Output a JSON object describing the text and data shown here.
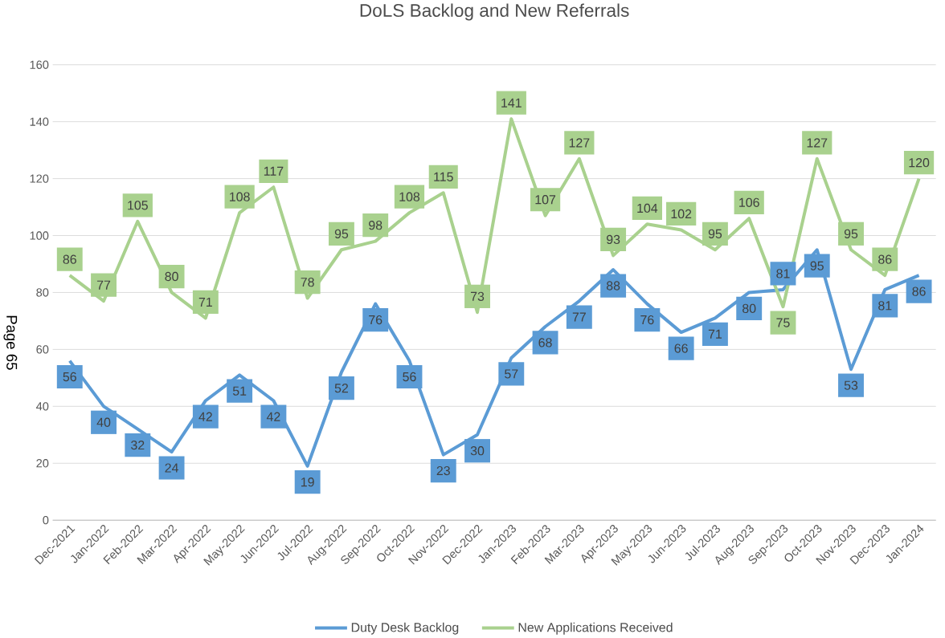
{
  "chart_data": {
    "type": "line",
    "title": "DoLS Backlog and New Referrals",
    "categories": [
      "Dec-2021",
      "Jan-2022",
      "Feb-2022",
      "Mar-2022",
      "Apr-2022",
      "May-2022",
      "Jun-2022",
      "Jul-2022",
      "Aug-2022",
      "Sep-2022",
      "Oct-2022",
      "Nov-2022",
      "Dec-2022",
      "Jan-2023",
      "Feb-2023",
      "Mar-2023",
      "Apr-2023",
      "May-2023",
      "Jun-2023",
      "Jul-2023",
      "Aug-2023",
      "Sep-2023",
      "Oct-2023",
      "Nov-2023",
      "Dec-2023",
      "Jan-2024"
    ],
    "series": [
      {
        "name": "Duty Desk Backlog",
        "color": "#5b9bd5",
        "values": [
          56,
          40,
          32,
          24,
          42,
          51,
          42,
          19,
          52,
          76,
          56,
          23,
          30,
          57,
          68,
          77,
          88,
          76,
          66,
          71,
          80,
          81,
          95,
          53,
          81,
          86
        ]
      },
      {
        "name": "New Applications Received",
        "color": "#a9d18e",
        "values": [
          86,
          77,
          105,
          80,
          71,
          108,
          117,
          78,
          95,
          98,
          108,
          115,
          73,
          141,
          107,
          127,
          93,
          104,
          102,
          95,
          106,
          75,
          127,
          95,
          86,
          120
        ]
      }
    ],
    "ylim": [
      0,
      160
    ],
    "yticks": [
      0,
      20,
      40,
      60,
      80,
      100,
      120,
      140,
      160
    ],
    "grid": "y",
    "legend": "bottom",
    "data_labels": true,
    "marker": "none",
    "line_style": "solid",
    "annotations": [
      "Page 65"
    ]
  }
}
